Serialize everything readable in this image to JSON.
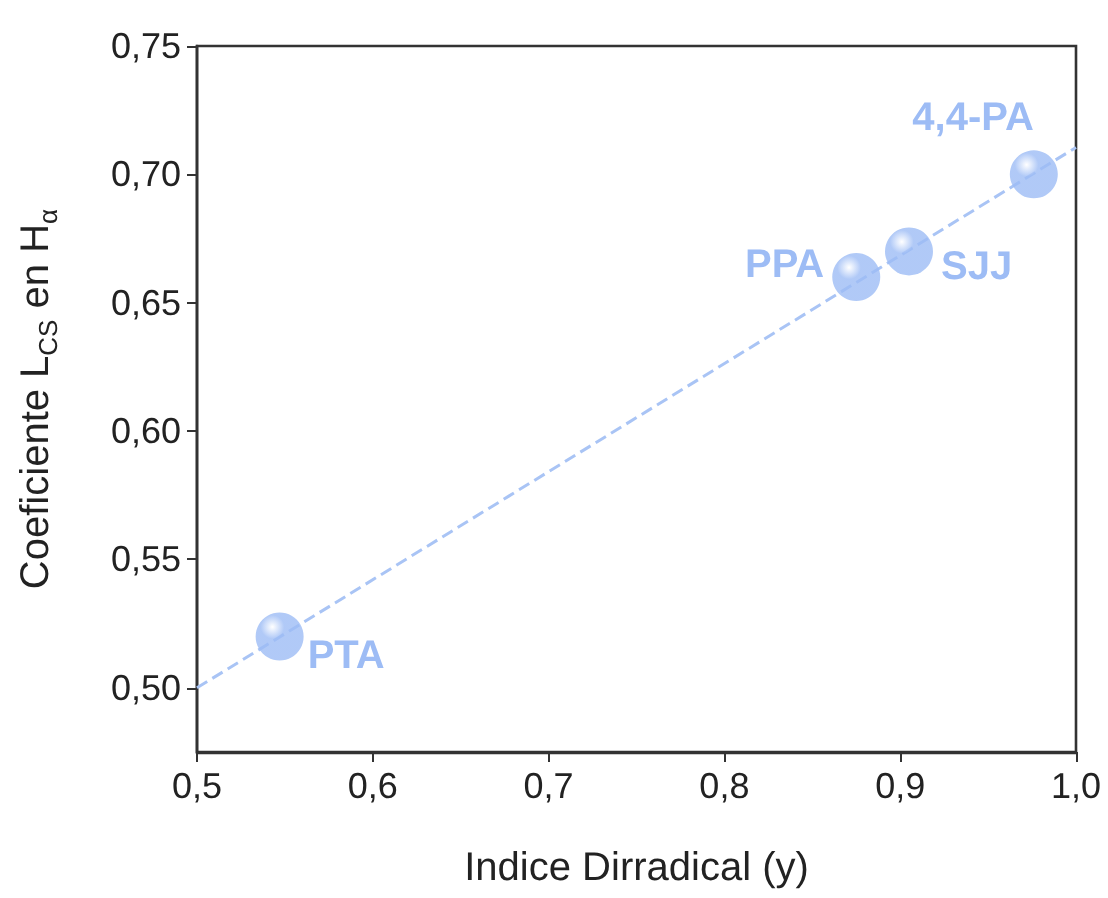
{
  "chart_data": {
    "type": "scatter",
    "xlabel": "Indice Dirradical (y)",
    "ylabel": "Coeficiente L$_{CS}$ en H$_{α}$",
    "x": [
      0.547,
      0.875,
      0.905,
      0.976
    ],
    "series": [
      {
        "type": "scatter",
        "color": "#9dbcf5",
        "marker": "circle",
        "values": [
          0.52,
          0.66,
          0.67,
          0.7
        ]
      },
      {
        "type": "line",
        "color": "#a9c4f5",
        "line_style": "dashed",
        "marker": "none",
        "x": [
          0.5,
          1.0
        ],
        "values": [
          0.5,
          0.7105
        ]
      }
    ],
    "annotations": [
      {
        "text": "PTA",
        "x": 0.547,
        "y": 0.52
      },
      {
        "text": "PPA",
        "x": 0.875,
        "y": 0.66
      },
      {
        "text": "SJJ",
        "x": 0.905,
        "y": 0.67
      },
      {
        "text": "4,4-PA",
        "x": 0.976,
        "y": 0.7
      }
    ],
    "xlim": [
      0.5,
      1.0
    ],
    "xticks": [
      {
        "value": 0.5,
        "label": "0,5"
      },
      {
        "value": 0.6,
        "label": "0,6"
      },
      {
        "value": 0.7,
        "label": "0,7"
      },
      {
        "value": 0.8,
        "label": "0,8"
      },
      {
        "value": 0.9,
        "label": "0,9"
      },
      {
        "value": 1.0,
        "label": "1,0"
      }
    ],
    "ylim": [
      0.475,
      0.75
    ],
    "yticks": [
      {
        "value": 0.5,
        "label": "0,50"
      },
      {
        "value": 0.55,
        "label": "0,55"
      },
      {
        "value": 0.6,
        "label": "0,60"
      },
      {
        "value": 0.65,
        "label": "0,65"
      },
      {
        "value": 0.7,
        "label": "0,70"
      },
      {
        "value": 0.75,
        "label": "0,75"
      }
    ],
    "grid": false
  }
}
